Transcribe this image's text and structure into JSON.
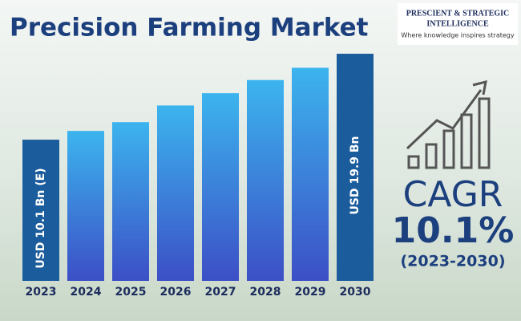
{
  "chart_data": {
    "type": "bar",
    "title": "Precision Farming Market",
    "categories": [
      "2023",
      "2024",
      "2025",
      "2026",
      "2027",
      "2028",
      "2029",
      "2030"
    ],
    "values": [
      10.1,
      11.1,
      12.1,
      14.0,
      15.4,
      16.9,
      18.3,
      19.9
    ],
    "value_labels": [
      "USD 10.1 Bn (E)",
      null,
      null,
      null,
      null,
      null,
      null,
      "USD 19.9 Bn"
    ],
    "colors": [
      "#1b5c9c",
      "#3cb4ee",
      "#3cb4ee",
      "#3cb4ee",
      "#3cb4ee",
      "#3cb4ee",
      "#3cb4ee",
      "#1b5c9c"
    ],
    "colors_bottom": [
      "#1b5c9c",
      "#3c4fc6",
      "#3c4fc6",
      "#3c4fc6",
      "#3c4fc6",
      "#3c4fc6",
      "#3c4fc6",
      "#1b5c9c"
    ],
    "ylim": [
      -6,
      22
    ],
    "annotations": {
      "cagr_label": "CAGR",
      "cagr_value": "10.1%",
      "cagr_period": "(2023-2030)"
    }
  },
  "logo": {
    "line1": "PRESCIENT & STRATEGIC",
    "line2": "INTELLIGENCE",
    "tagline": "Where knowledge inspires strategy"
  }
}
